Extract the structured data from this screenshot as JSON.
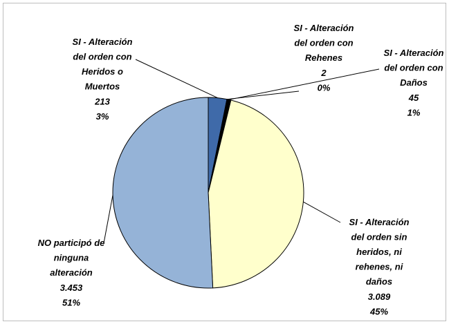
{
  "chart_data": {
    "type": "pie",
    "categories": [
      "SI - Alteración del orden con Heridos o Muertos",
      "SI - Alteración del orden con Rehenes",
      "SI - Alteración del orden con Daños",
      "SI - Alteración del orden sin heridos, ni rehenes, ni daños",
      "NO participó de ninguna alteración"
    ],
    "values": [
      213,
      2,
      45,
      3089,
      3453
    ],
    "value_labels": [
      "213",
      "2",
      "45",
      "3.089",
      "3.453"
    ],
    "percentages": [
      3,
      0,
      1,
      45,
      51
    ],
    "percentage_labels": [
      "3%",
      "0%",
      "1%",
      "45%",
      "51%"
    ],
    "colors": [
      "#3f6aa9",
      "#2a2a2a",
      "#000000",
      "#ffffcc",
      "#95b3d7"
    ]
  }
}
